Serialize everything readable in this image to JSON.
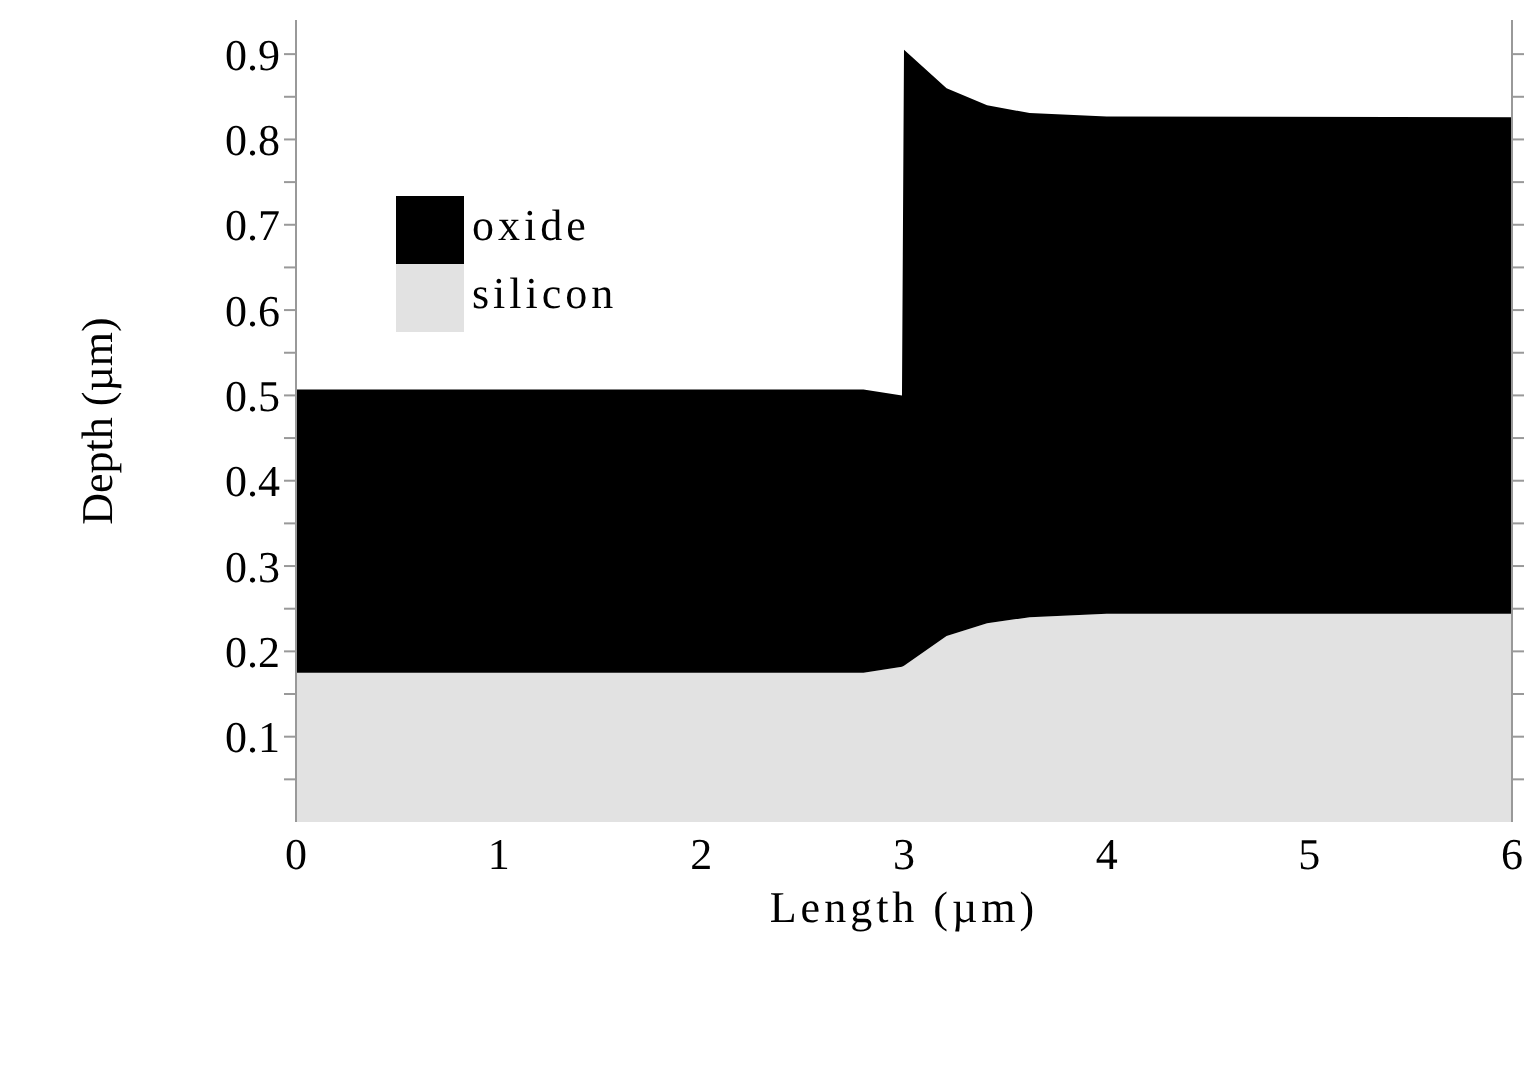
{
  "chart_data": {
    "type": "area",
    "stacked": true,
    "xlabel": "Length (µm)",
    "ylabel": "Depth (µm)",
    "x": [
      0,
      2.8,
      2.99,
      3.0,
      3.21,
      3.41,
      3.62,
      4.0,
      6
    ],
    "series": [
      {
        "name": "silicon",
        "color": "#e2e2e2",
        "values": [
          0.175,
          0.175,
          0.182,
          0.183,
          0.218,
          0.233,
          0.24,
          0.244,
          0.244
        ]
      },
      {
        "name": "oxide",
        "color": "#000000",
        "values": [
          0.332,
          0.332,
          0.318,
          0.722,
          0.642,
          0.607,
          0.591,
          0.583,
          0.582
        ]
      }
    ],
    "xlim": [
      0,
      6
    ],
    "xticks": [
      0,
      1,
      2,
      3,
      4,
      5,
      6
    ],
    "ylim": [
      0,
      0.94
    ],
    "yticks": [
      {
        "value": 0.05,
        "label": null
      },
      0.1,
      {
        "value": 0.15,
        "label": null
      },
      0.2,
      {
        "value": 0.25,
        "label": null
      },
      0.3,
      {
        "value": 0.35,
        "label": null
      },
      0.4,
      {
        "value": 0.45,
        "label": null
      },
      0.5,
      {
        "value": 0.55,
        "label": null
      },
      0.6,
      {
        "value": 0.65,
        "label": null
      },
      0.7,
      {
        "value": 0.75,
        "label": null
      },
      0.8,
      {
        "value": 0.85,
        "label": null
      },
      0.9
    ],
    "legend": "top left"
  }
}
